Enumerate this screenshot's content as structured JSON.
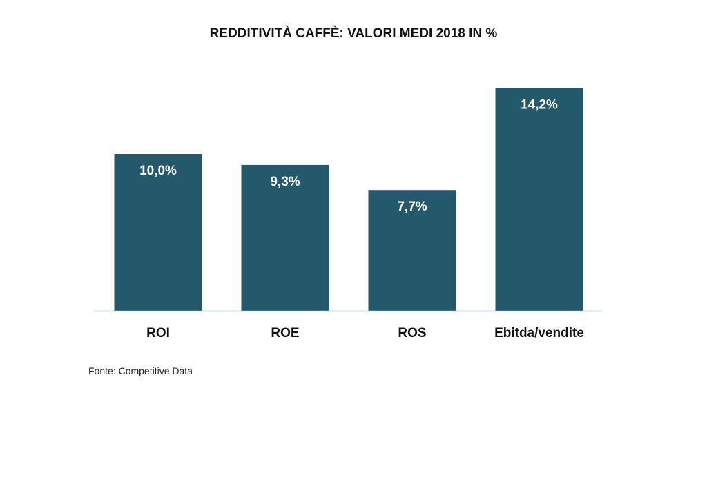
{
  "chart_data": {
    "type": "bar",
    "title": "REDDITIVITÀ CAFFÈ: VALORI MEDI 2018 IN %",
    "categories": [
      "ROI",
      "ROE",
      "ROS",
      "Ebitda/vendite"
    ],
    "values": [
      10.0,
      9.3,
      7.7,
      14.2
    ],
    "value_labels": [
      "10,0%",
      "9,3%",
      "7,7%",
      "14,2%"
    ],
    "xlabel": "",
    "ylabel": "",
    "ylim": [
      0,
      15
    ],
    "grid": false,
    "legend": "none",
    "bar_color": "#23596a",
    "axis_color": "#a9c4dc",
    "source": "Fonte: Competitive Data"
  }
}
